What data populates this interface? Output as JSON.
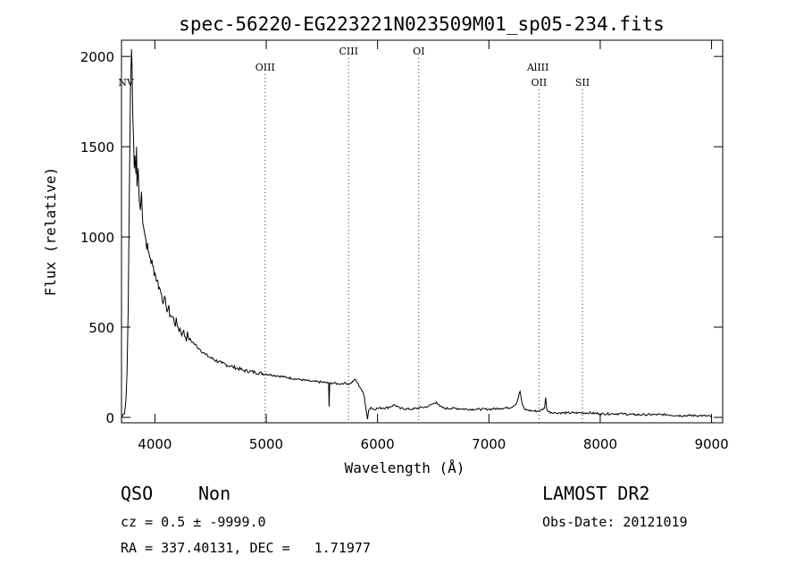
{
  "chart_data": {
    "type": "line",
    "title": "spec-56220-EG223221N023509M01_sp05-234.fits",
    "xlabel": "Wavelength (Å)",
    "ylabel": "Flux (relative)",
    "xlim": [
      3700,
      9100
    ],
    "ylim": [
      -30,
      2090
    ],
    "xticks": [
      4000,
      5000,
      6000,
      7000,
      8000,
      9000
    ],
    "yticks": [
      0,
      500,
      1000,
      1500,
      2000
    ],
    "grid": false,
    "series": [
      {
        "x": [
          3700,
          3720,
          3740,
          3750,
          3760,
          3770,
          3780,
          3790,
          3795,
          3800,
          3810,
          3815,
          3820,
          3830,
          3835,
          3840,
          3850,
          3860,
          3870,
          3880,
          3890,
          3900,
          3920,
          3940,
          3960,
          3980,
          4000,
          4020,
          4040,
          4060,
          4080,
          4100,
          4150,
          4200,
          4250,
          4300,
          4350,
          4400,
          4450,
          4500,
          4600,
          4700,
          4800,
          4900,
          5000,
          5100,
          5200,
          5300,
          5400,
          5500,
          5560,
          5565,
          5570,
          5600,
          5650,
          5700,
          5750,
          5800,
          5820,
          5850,
          5880,
          5900,
          5910,
          5920,
          5940,
          5960,
          6000,
          6100,
          6150,
          6200,
          6300,
          6400,
          6450,
          6500,
          6530,
          6560,
          6600,
          6700,
          6800,
          6900,
          7000,
          7100,
          7200,
          7250,
          7280,
          7300,
          7320,
          7350,
          7400,
          7450,
          7500,
          7510,
          7520,
          7540,
          7600,
          7700,
          7800,
          7900,
          8000,
          8100,
          8200,
          8300,
          8400,
          8500,
          8600,
          8700,
          8800,
          8900,
          9000
        ],
        "y": [
          0,
          20,
          100,
          250,
          600,
          1200,
          1800,
          2040,
          1950,
          1700,
          1500,
          1380,
          1450,
          1350,
          1500,
          1280,
          1380,
          1200,
          1150,
          1250,
          1080,
          1050,
          980,
          920,
          880,
          840,
          800,
          760,
          720,
          680,
          650,
          620,
          560,
          510,
          470,
          440,
          410,
          380,
          350,
          330,
          300,
          280,
          260,
          250,
          240,
          230,
          220,
          210,
          200,
          195,
          190,
          60,
          190,
          190,
          185,
          190,
          185,
          210,
          190,
          160,
          120,
          30,
          -10,
          40,
          55,
          45,
          50,
          55,
          70,
          50,
          45,
          55,
          60,
          75,
          85,
          60,
          50,
          50,
          45,
          45,
          45,
          50,
          55,
          80,
          145,
          70,
          45,
          40,
          35,
          35,
          50,
          110,
          45,
          30,
          25,
          25,
          25,
          25,
          20,
          20,
          20,
          15,
          15,
          15,
          15,
          10,
          10,
          10,
          5
        ]
      }
    ],
    "lines": [
      {
        "label": "NV",
        "x": 3740
      },
      {
        "label": "OIII",
        "x": 4990
      },
      {
        "label": "CIII",
        "x": 5740
      },
      {
        "label": "OI",
        "x": 6370
      },
      {
        "label": "AlIII",
        "x": 7440
      },
      {
        "label": "OII",
        "x": 7450
      },
      {
        "label": "SII",
        "x": 7840
      }
    ]
  },
  "info": {
    "class": "QSO",
    "subclass": "Non",
    "survey": "LAMOST DR2",
    "cz": "cz = 0.5 ± -9999.0",
    "obs_date": "Obs-Date: 20121019",
    "coords": "RA = 337.40131, DEC =   1.71977"
  },
  "colors": {
    "spectrum": "#000000",
    "line_markers": "#800080",
    "axes": "#000000"
  }
}
